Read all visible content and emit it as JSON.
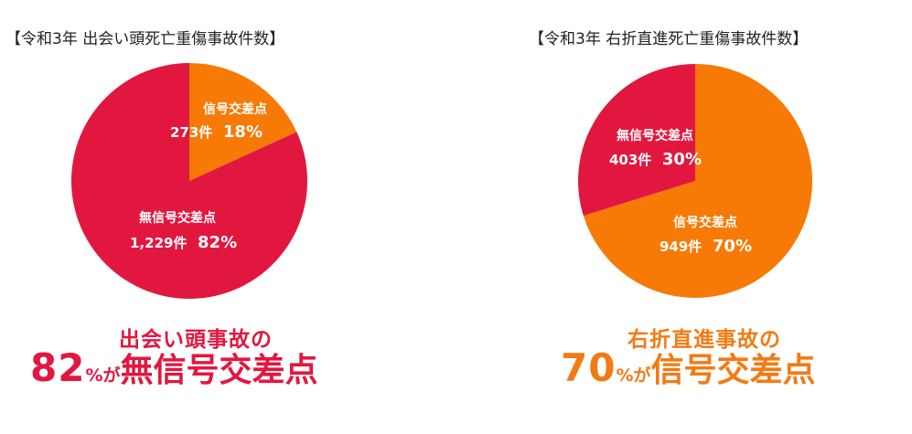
{
  "colors": {
    "red": "#e2173f",
    "orange": "#f77a06"
  },
  "left": {
    "title": "【令和3年 出会い頭死亡重傷事故件数】",
    "caption_line1": "出会い頭事故の",
    "caption_pct": "82",
    "caption_pct_unit": "%が",
    "caption_tail": "無信号交差点"
  },
  "right": {
    "title": "【令和3年 右折直進死亡重傷事故件数】",
    "caption_line1": "右折直進事故の",
    "caption_pct": "70",
    "caption_pct_unit": "%が",
    "caption_tail": "信号交差点"
  },
  "chart_data": [
    {
      "type": "pie",
      "title": "【令和3年 出会い頭死亡重傷事故件数】",
      "slices": [
        {
          "label": "信号交差点",
          "count_text": "273件",
          "pct_text": "18%",
          "value": 273,
          "percent": 18,
          "color": "#f77a06"
        },
        {
          "label": "無信号交差点",
          "count_text": "1,229件",
          "pct_text": "82%",
          "value": 1229,
          "percent": 82,
          "color": "#e2173f"
        }
      ]
    },
    {
      "type": "pie",
      "title": "【令和3年 右折直進死亡重傷事故件数】",
      "slices": [
        {
          "label": "信号交差点",
          "count_text": "949件",
          "pct_text": "70%",
          "value": 949,
          "percent": 70,
          "color": "#f77a06"
        },
        {
          "label": "無信号交差点",
          "count_text": "403件",
          "pct_text": "30%",
          "value": 403,
          "percent": 30,
          "color": "#e2173f"
        }
      ]
    }
  ]
}
